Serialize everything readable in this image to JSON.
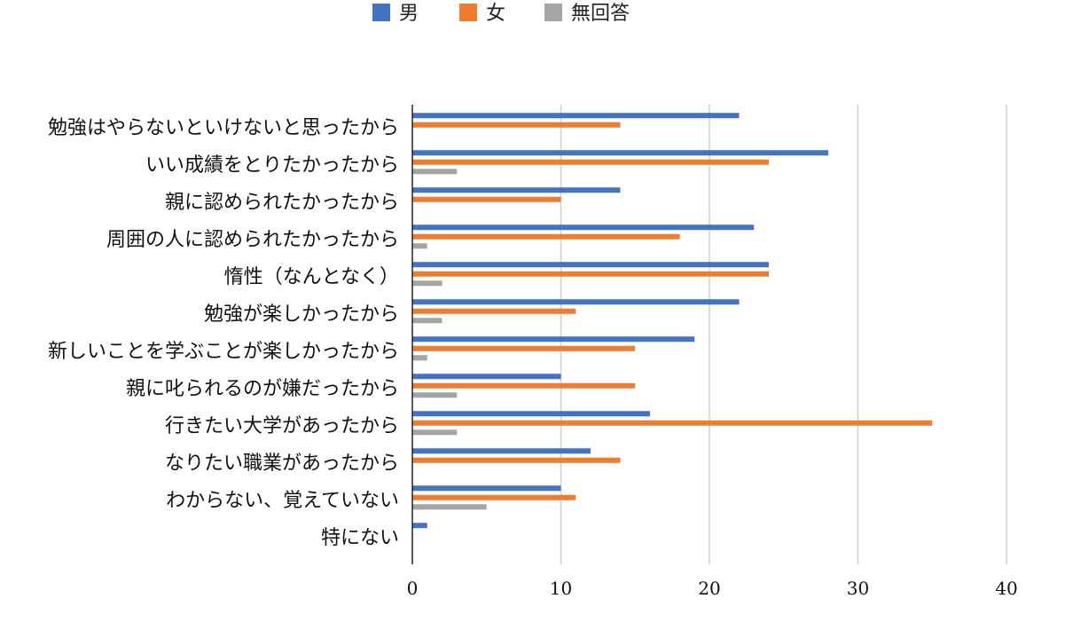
{
  "chart_data": {
    "type": "bar",
    "orientation": "horizontal",
    "title": "",
    "xlabel": "",
    "ylabel": "",
    "xlim": [
      0,
      40
    ],
    "x_ticks": [
      "0",
      "10",
      "20",
      "30",
      "40"
    ],
    "grid": true,
    "legend_position": "top-center",
    "categories": [
      "勉強はやらないといけないと思ったから",
      "いい成績をとりたかったから",
      "親に認められたかったから",
      "周囲の人に認められたかったから",
      "惰性（なんとなく）",
      "勉強が楽しかったから",
      "新しいことを学ぶことが楽しかったから",
      "親に叱られるのが嫌だったから",
      "行きたい大学があったから",
      "なりたい職業があったから",
      "わからない、覚えていない",
      "特にない"
    ],
    "series": [
      {
        "name": "男",
        "color": "#4472c4",
        "values": [
          22,
          28,
          14,
          23,
          24,
          22,
          19,
          10,
          16,
          12,
          10,
          1
        ]
      },
      {
        "name": "女",
        "color": "#ed7d31",
        "values": [
          14,
          24,
          10,
          18,
          24,
          11,
          15,
          15,
          35,
          14,
          11,
          0
        ]
      },
      {
        "name": "無回答",
        "color": "#a5a5a5",
        "values": [
          0,
          3,
          0,
          1,
          2,
          2,
          1,
          3,
          3,
          0,
          5,
          0
        ]
      }
    ]
  }
}
